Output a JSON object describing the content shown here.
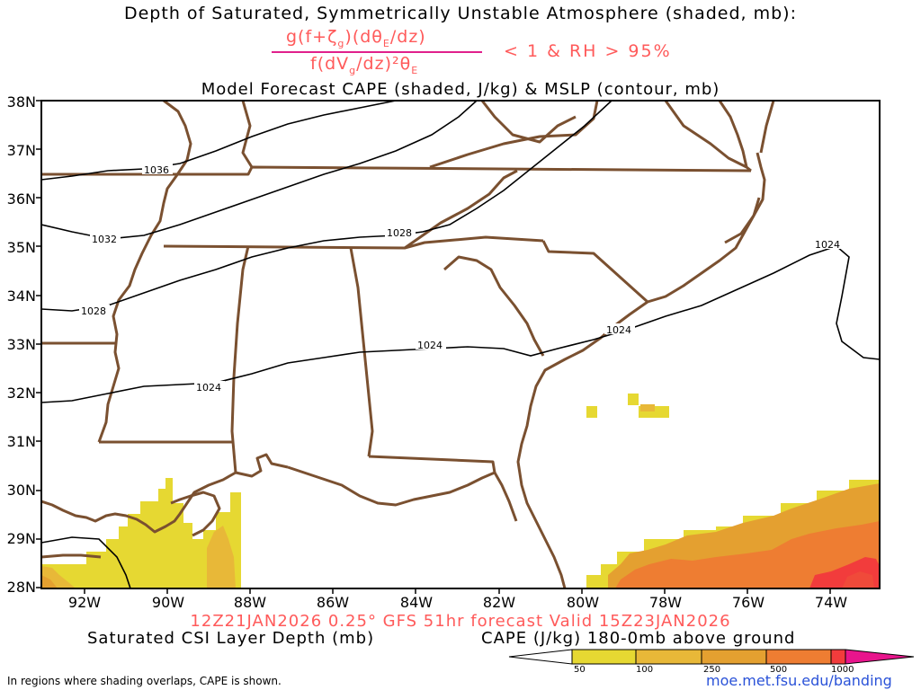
{
  "header": {
    "title": "Depth of Saturated, Symmetrically Unstable Atmosphere (shaded, mb):",
    "numerator": "g(f+ζ",
    "numerator_sub": "g",
    "numerator_tail": ")(dθ",
    "numerator_sub2": "E",
    "numerator_end": "/dz)",
    "denominator": "f(dV",
    "denominator_sub": "g",
    "denominator_tail": "/dz)²θ",
    "denominator_sub2": "E",
    "condition": "< 1 & RH > 95%",
    "subtitle": "Model Forecast CAPE (shaded, J/kg) & MSLP (contour, mb)"
  },
  "axes": {
    "lat_labels": [
      "38N",
      "37N",
      "36N",
      "35N",
      "34N",
      "33N",
      "32N",
      "31N",
      "30N",
      "29N",
      "28N"
    ],
    "lon_labels": [
      "92W",
      "90W",
      "88W",
      "86W",
      "84W",
      "82W",
      "80W",
      "78W",
      "76W",
      "74W"
    ]
  },
  "isobars": [
    {
      "label": "1036"
    },
    {
      "label": "1032"
    },
    {
      "label": "1028"
    },
    {
      "label": "1028"
    },
    {
      "label": "1024"
    },
    {
      "label": "1024"
    },
    {
      "label": "1024"
    },
    {
      "label": "1024"
    }
  ],
  "footer": {
    "valid_line": "12Z21JAN2026 0.25° GFS 51hr forecast Valid 15Z23JAN2026",
    "csi_label": "Saturated CSI Layer Depth (mb)",
    "cape_label": "CAPE (J/kg) 180-0mb above ground",
    "colorbar_ticks": [
      "50",
      "100",
      "250",
      "500",
      "1000"
    ],
    "note": "In regions where shading overlaps, CAPE is shown.",
    "url": "moe.met.fsu.edu/banding"
  },
  "colors": {
    "text_red": "#ff5a5a",
    "divider": "#e0208c",
    "border": "#7a5030",
    "cape_50": "#e6d832",
    "cape_100": "#e8b838",
    "cape_250": "#e4a030",
    "cape_500": "#ee7d32",
    "cape_1000": "#f23c3c",
    "url": "#2a52d8"
  }
}
